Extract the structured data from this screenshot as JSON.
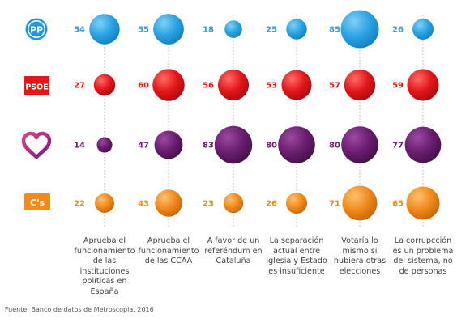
{
  "chart_data": {
    "type": "bubble",
    "categories": [
      "Aprueba el funcionamiento de las instituciones políticas en España",
      "Aprueba el funcionamiento de las CCAA",
      "A favor de un referéndum en Cataluña",
      "La separación actual entre Iglesia y Estado es insuficiente",
      "Votaría lo mismo si hubiera otras elecciones",
      "La corrupcción es un problema del sistema, no de personas"
    ],
    "category_lines": [
      [
        "Aprueba el",
        "funcionamiento",
        "de las",
        "instituciones",
        "políticas en",
        "España"
      ],
      [
        "Aprueba el",
        "funcionamiento",
        "de las CCAA"
      ],
      [
        "A favor de un",
        "referéndum en",
        "Cataluña"
      ],
      [
        "La separación",
        "actual entre",
        "Iglesia y Estado",
        "es insuficiente"
      ],
      [
        "Votaría lo",
        "mismo si",
        "hubiera otras",
        "elecciones"
      ],
      [
        "La corrupcción",
        "es un problema",
        "del sistema, no",
        "de personas"
      ]
    ],
    "series": [
      {
        "party": "pp",
        "logo_text": "PP",
        "color": "#2BA3E3",
        "values": [
          54,
          55,
          18,
          25,
          85,
          26
        ]
      },
      {
        "party": "psoe",
        "logo_text": "PSOE",
        "color": "#E3171B",
        "values": [
          27,
          60,
          56,
          53,
          57,
          59
        ]
      },
      {
        "party": "podemos",
        "logo_text": "",
        "color": "#6A1E6E",
        "values": [
          14,
          47,
          83,
          80,
          80,
          77
        ]
      },
      {
        "party": "cs",
        "logo_text": "C's",
        "color": "#F28A1A",
        "values": [
          22,
          43,
          23,
          26,
          71,
          65
        ]
      }
    ]
  },
  "source": "Fuente: Banco de datos de Metroscopia, 2016"
}
